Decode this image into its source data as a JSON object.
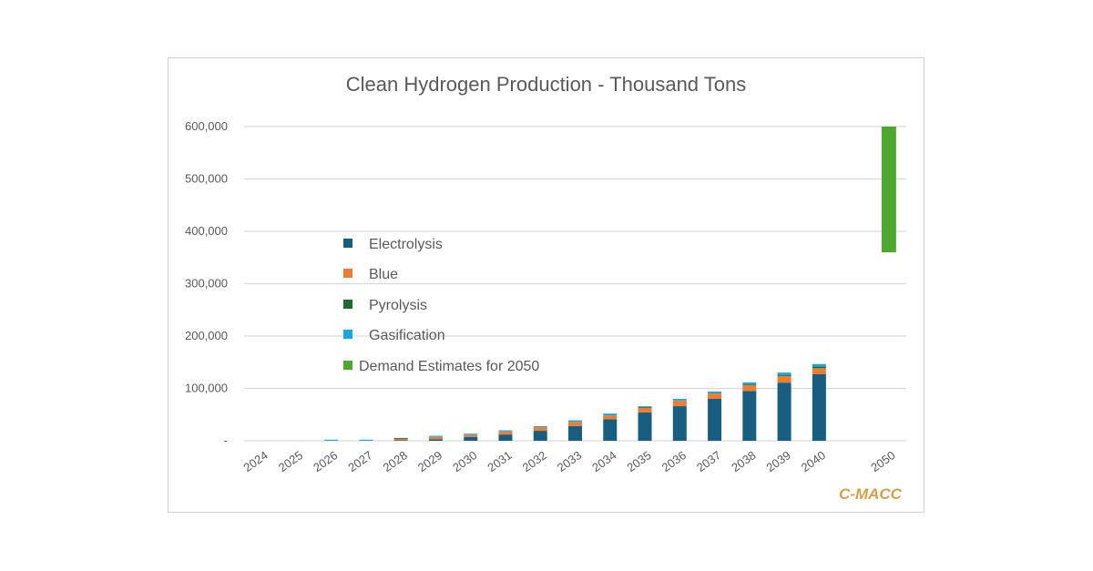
{
  "chart_data": {
    "type": "bar",
    "stacked": true,
    "title": "Clean Hydrogen Production - Thousand Tons",
    "categories": [
      "2024",
      "2025",
      "2026",
      "2027",
      "2028",
      "2029",
      "2030",
      "2031",
      "2032",
      "2033",
      "2034",
      "2035",
      "2036",
      "2037",
      "2038",
      "2039",
      "2040",
      "2050"
    ],
    "ylim": [
      0,
      600000
    ],
    "yticks": [
      0,
      100000,
      200000,
      300000,
      400000,
      500000,
      600000
    ],
    "ytick_labels": [
      "-",
      "100,000",
      "200,000",
      "300,000",
      "400,000",
      "500,000",
      "600,000"
    ],
    "grid": true,
    "legend_placement": "center-left",
    "series": [
      {
        "name": "Electrolysis",
        "color": "#185e80",
        "values": [
          0,
          0,
          0,
          0,
          1000,
          3000,
          7500,
          12000,
          19000,
          28000,
          41000,
          54000,
          66000,
          80000,
          95000,
          111000,
          127000,
          0
        ]
      },
      {
        "name": "Blue",
        "color": "#ed7d31",
        "values": [
          0,
          0,
          0,
          0,
          2500,
          4500,
          4000,
          6000,
          7000,
          8000,
          7500,
          9000,
          11000,
          10500,
          11000,
          12700,
          11600,
          0
        ]
      },
      {
        "name": "Pyrolysis",
        "color": "#1e6b2e",
        "values": [
          0,
          0,
          0,
          0,
          1500,
          0,
          0,
          0,
          0,
          0,
          0,
          1500,
          0,
          0,
          1500,
          1500,
          3000,
          0
        ]
      },
      {
        "name": "Gasification",
        "color": "#1aa7e0",
        "values": [
          0,
          0,
          2000,
          2000,
          500,
          2000,
          2000,
          2000,
          2000,
          3000,
          3500,
          1500,
          3000,
          3500,
          4000,
          5000,
          5000,
          0
        ]
      },
      {
        "name": "Demand Estimates for 2050",
        "color": "#4ea72e",
        "range_2050": [
          360000,
          600000
        ]
      }
    ],
    "watermark": "C-MACC"
  }
}
